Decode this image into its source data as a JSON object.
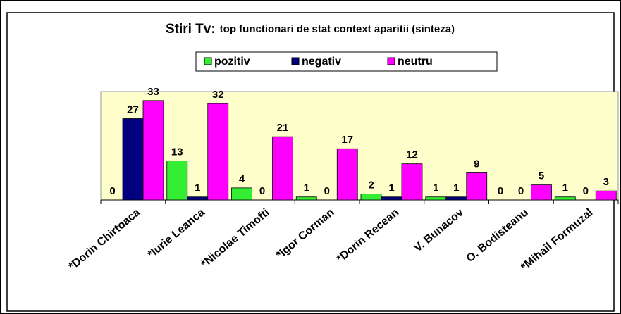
{
  "chart_data": {
    "type": "bar",
    "title": "Stiri Tv:",
    "subtitle": "top functionari de stat context aparitii (sinteza)",
    "categories": [
      "*Dorin Chirtoaca",
      "*Iurie Leanca",
      "*Nicolae Timofti",
      "*Igor Corman",
      "*Dorin Recean",
      "V. Bunacov",
      "O. Bodisteanu",
      "*Mihail Formuzal"
    ],
    "series": [
      {
        "name": "pozitiv",
        "color": "#33ee33",
        "values": [
          0,
          13,
          4,
          1,
          2,
          1,
          0,
          1
        ]
      },
      {
        "name": "negativ",
        "color": "#000080",
        "values": [
          27,
          1,
          0,
          0,
          1,
          1,
          0,
          0
        ]
      },
      {
        "name": "neutru",
        "color": "#ff00ff",
        "values": [
          33,
          32,
          21,
          17,
          12,
          9,
          5,
          3
        ]
      }
    ],
    "ylim": [
      0,
      36
    ],
    "legend": "top",
    "plot_background": "#ffffcc"
  }
}
